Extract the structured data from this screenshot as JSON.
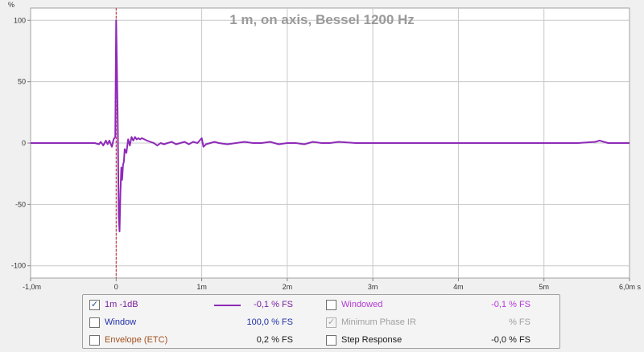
{
  "chart_data": {
    "type": "line",
    "title": "1 m, on axis, Bessel 1200 Hz",
    "ylabel_unit": "%",
    "xlim": [
      -1.0,
      6.0
    ],
    "ylim": [
      -110,
      110
    ],
    "x_tick_labels": [
      "-1,0m",
      "0",
      "1m",
      "2m",
      "3m",
      "4m",
      "5m",
      "6,0m s"
    ],
    "x_tick_values": [
      -1,
      0,
      1,
      2,
      3,
      4,
      5,
      6
    ],
    "y_tick_labels": [
      "100",
      "50",
      "0",
      "-50",
      "-100"
    ],
    "y_tick_values": [
      100,
      50,
      0,
      -50,
      -100
    ],
    "grid": true,
    "marker_x": 0,
    "series": [
      {
        "name": "1m -1dB",
        "color": "#8e2ab8",
        "x": [
          -1.0,
          -0.9,
          -0.8,
          -0.7,
          -0.6,
          -0.5,
          -0.4,
          -0.3,
          -0.25,
          -0.2,
          -0.18,
          -0.15,
          -0.12,
          -0.1,
          -0.08,
          -0.05,
          -0.03,
          -0.01,
          0.0,
          0.01,
          0.02,
          0.03,
          0.04,
          0.05,
          0.06,
          0.07,
          0.08,
          0.09,
          0.1,
          0.12,
          0.14,
          0.16,
          0.18,
          0.2,
          0.22,
          0.24,
          0.26,
          0.28,
          0.3,
          0.33,
          0.36,
          0.4,
          0.44,
          0.48,
          0.52,
          0.56,
          0.6,
          0.65,
          0.7,
          0.75,
          0.8,
          0.85,
          0.9,
          0.95,
          1.0,
          1.02,
          1.05,
          1.1,
          1.15,
          1.2,
          1.3,
          1.4,
          1.5,
          1.6,
          1.7,
          1.8,
          1.9,
          2.0,
          2.1,
          2.2,
          2.3,
          2.4,
          2.5,
          2.6,
          2.8,
          3.0,
          3.2,
          3.4,
          3.6,
          3.8,
          4.0,
          4.2,
          4.4,
          4.6,
          4.8,
          5.0,
          5.2,
          5.4,
          5.6,
          5.65,
          5.7,
          5.75,
          5.8,
          5.9,
          6.0
        ],
        "y": [
          0,
          0,
          0,
          0,
          0,
          0,
          0,
          0,
          0,
          -1,
          1,
          -2,
          2,
          -1,
          2,
          -3,
          3,
          5,
          100,
          60,
          10,
          -60,
          -72,
          -40,
          -20,
          -30,
          -18,
          -15,
          -5,
          -8,
          3,
          -2,
          5,
          2,
          5,
          3,
          4,
          3,
          4,
          3,
          2,
          1,
          0,
          -2,
          0,
          -1,
          0,
          1,
          -1,
          0,
          1,
          -1,
          1,
          0,
          4,
          -3,
          -1,
          0,
          1,
          0,
          -1,
          0,
          1,
          0,
          0,
          1,
          -1,
          0,
          0,
          -1,
          1,
          0,
          0,
          1,
          0,
          0,
          0,
          0,
          0,
          0,
          0,
          0,
          0,
          0,
          0,
          0,
          0,
          0,
          1,
          2,
          1,
          0,
          0,
          0,
          0
        ]
      }
    ]
  },
  "legend": {
    "rows": [
      {
        "left": {
          "label": "1m -1dB",
          "checked": true,
          "value": "-0,1 % FS",
          "color": "#7a1fa0",
          "has_swatch": true
        },
        "right": {
          "label": "Windowed",
          "checked": false,
          "value": "-0,1 % FS",
          "color": "#b33ad6",
          "disabled": false
        }
      },
      {
        "left": {
          "label": "Window",
          "checked": false,
          "value": "100,0 % FS",
          "color": "#1f2fa8"
        },
        "right": {
          "label": "Minimum Phase IR",
          "checked": true,
          "value": "% FS",
          "color": "#a0a0a0",
          "disabled": true
        }
      },
      {
        "left": {
          "label": "Envelope (ETC)",
          "checked": false,
          "value": "0,2 % FS",
          "color": "#a0501c"
        },
        "right": {
          "label": "Step Response",
          "checked": false,
          "value": "-0,0 % FS",
          "color": "#1a1a1a",
          "disabled": false
        }
      }
    ]
  }
}
